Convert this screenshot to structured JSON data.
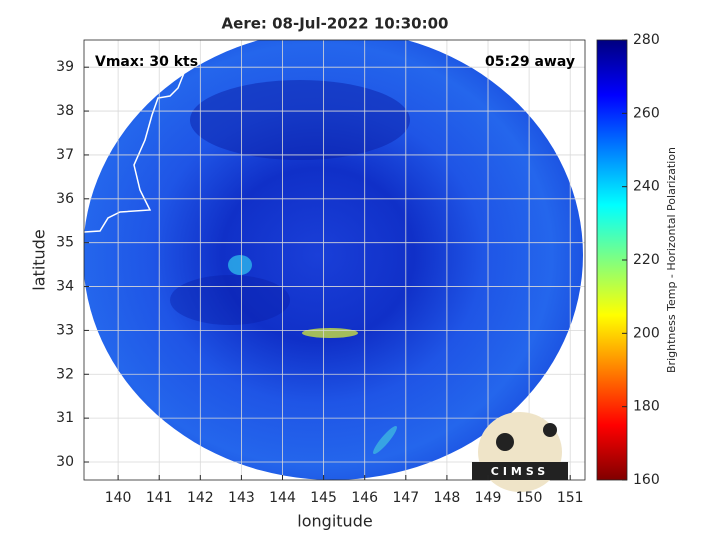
{
  "chart_data": {
    "type": "image",
    "title": "Aere: 08-Jul-2022 10:30:00",
    "annotations": [
      "Vmax: 30 kts",
      "05:29 away"
    ],
    "x_label": "longitude",
    "y_label": "latitude",
    "xlim": [
      139.17,
      151.36
    ],
    "ylim": [
      29.59,
      39.62
    ],
    "xticks": [
      140,
      141,
      142,
      143,
      144,
      145,
      146,
      147,
      148,
      149,
      150,
      151
    ],
    "yticks": [
      30,
      31,
      32,
      33,
      34,
      35,
      36,
      37,
      38,
      39
    ],
    "grid": true,
    "colorbar": {
      "label": "Brightness Temp - Horizontal Polarization",
      "lim": [
        160,
        280
      ],
      "ticks": [
        160,
        180,
        200,
        220,
        240,
        260,
        280
      ],
      "colormap": [
        "#800000",
        "#ff0000",
        "#ff8000",
        "#ffff00",
        "#80ff80",
        "#00ffff",
        "#0080ff",
        "#0000ff",
        "#000080"
      ]
    }
  },
  "logo": {
    "text": "CIMSS"
  }
}
